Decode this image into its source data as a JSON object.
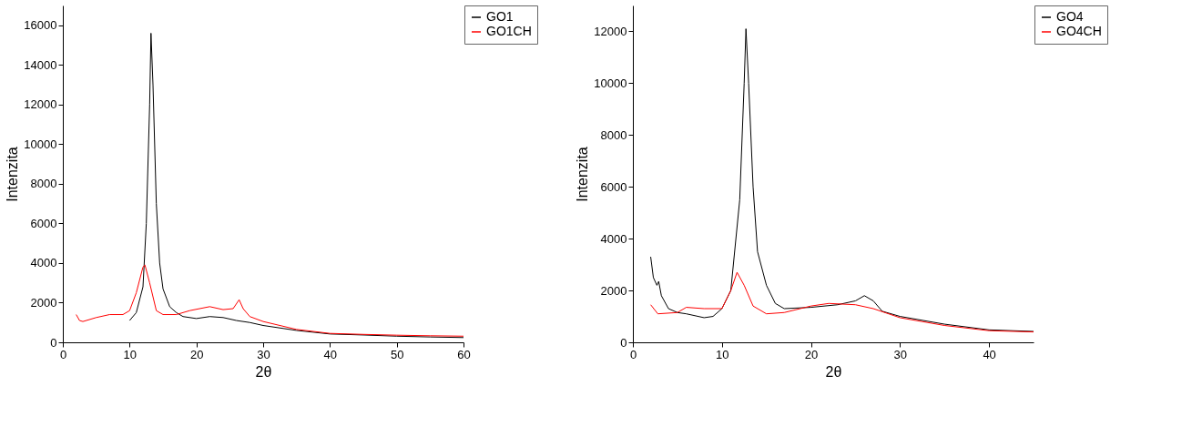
{
  "chart_data": [
    {
      "type": "line",
      "xlabel": "2θ",
      "ylabel": "Intenzita",
      "xlim": [
        0,
        60
      ],
      "ylim": [
        0,
        17000
      ],
      "xticks": [
        0,
        10,
        20,
        30,
        40,
        50,
        60
      ],
      "yticks": [
        0,
        2000,
        4000,
        6000,
        8000,
        10000,
        12000,
        14000,
        16000
      ],
      "grid": false,
      "legend": "top right",
      "line_style": "solid",
      "series": [
        {
          "name": "GO1",
          "color": "#000000",
          "x": [
            10,
            11,
            12,
            12.5,
            13,
            13.2,
            13.5,
            14,
            14.5,
            15,
            16,
            17,
            18,
            20,
            22,
            24,
            26,
            28,
            30,
            35,
            40,
            45,
            50,
            55,
            60
          ],
          "values": [
            1100,
            1500,
            2800,
            6000,
            12000,
            15600,
            13000,
            7000,
            4000,
            2700,
            1800,
            1500,
            1300,
            1200,
            1300,
            1250,
            1100,
            1000,
            850,
            600,
            420,
            370,
            310,
            270,
            240
          ]
        },
        {
          "name": "GO1CH",
          "color": "#ff0000",
          "x": [
            2,
            2.5,
            3,
            5,
            7,
            9,
            10,
            11,
            12,
            12.3,
            13,
            14,
            15,
            17,
            19,
            22,
            24,
            25.5,
            26.4,
            27,
            28,
            30,
            35,
            40,
            45,
            50,
            55,
            60
          ],
          "values": [
            1400,
            1100,
            1050,
            1250,
            1400,
            1400,
            1600,
            2500,
            3800,
            3900,
            3000,
            1600,
            1400,
            1400,
            1600,
            1800,
            1650,
            1700,
            2150,
            1700,
            1300,
            1050,
            650,
            450,
            400,
            360,
            330,
            310
          ]
        }
      ]
    },
    {
      "type": "line",
      "xlabel": "2θ",
      "ylabel": "Intenzita",
      "xlim": [
        0,
        45
      ],
      "ylim": [
        0,
        13000
      ],
      "xticks": [
        0,
        10,
        20,
        30,
        40
      ],
      "yticks": [
        0,
        2000,
        4000,
        6000,
        8000,
        10000,
        12000
      ],
      "grid": false,
      "legend": "top right",
      "line_style": "solid",
      "series": [
        {
          "name": "GO4",
          "color": "#000000",
          "x": [
            2,
            2.3,
            2.7,
            2.9,
            3.2,
            4,
            5,
            6,
            8,
            9,
            10,
            11,
            12,
            12.5,
            12.7,
            13,
            13.5,
            14,
            15,
            16,
            17,
            20,
            23,
            25,
            26,
            27,
            28,
            30,
            35,
            40,
            45
          ],
          "values": [
            3300,
            2500,
            2200,
            2350,
            1800,
            1300,
            1150,
            1100,
            950,
            1000,
            1300,
            2000,
            5500,
            10000,
            12100,
            10000,
            6000,
            3500,
            2200,
            1500,
            1300,
            1350,
            1450,
            1600,
            1800,
            1600,
            1200,
            1000,
            700,
            480,
            420
          ]
        },
        {
          "name": "GO4CH",
          "color": "#ff0000",
          "x": [
            2,
            2.8,
            5,
            6,
            8,
            10,
            11,
            11.7,
            12.5,
            13.5,
            15,
            17,
            20,
            22,
            25,
            27,
            30,
            35,
            40,
            45
          ],
          "values": [
            1450,
            1100,
            1150,
            1350,
            1300,
            1300,
            2000,
            2700,
            2200,
            1400,
            1100,
            1150,
            1400,
            1500,
            1450,
            1300,
            950,
            650,
            450,
            400
          ]
        }
      ]
    }
  ]
}
